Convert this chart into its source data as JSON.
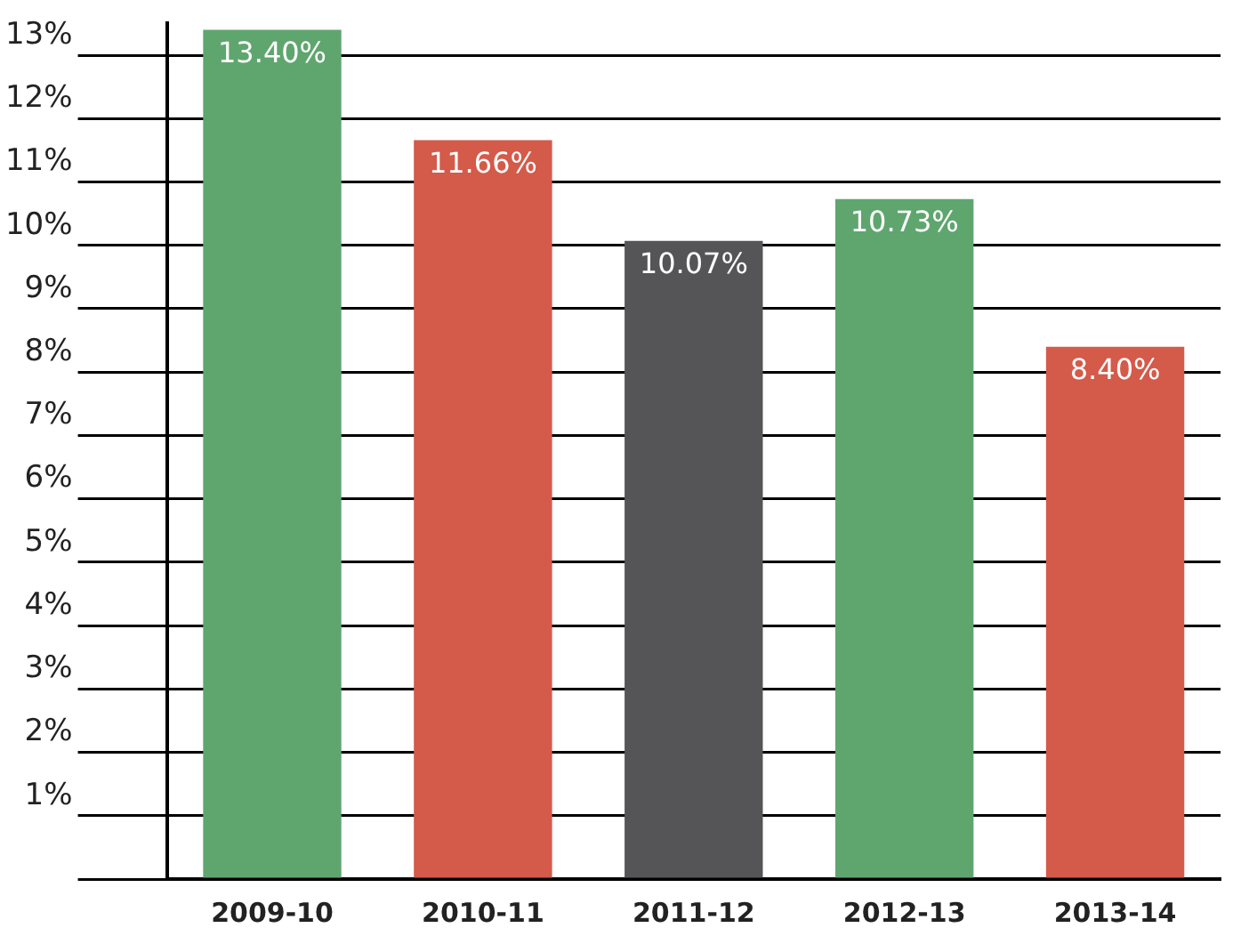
{
  "chart_data": {
    "type": "bar",
    "categories": [
      "2009-10",
      "2010-11",
      "2011-12",
      "2012-13",
      "2013-14"
    ],
    "values": [
      13.4,
      11.66,
      10.07,
      10.73,
      8.4
    ],
    "colors": [
      "#5fa66e",
      "#d45a4a",
      "#555557",
      "#5fa66e",
      "#d45a4a"
    ],
    "value_labels": [
      "13.40%",
      "11.66%",
      "10.07%",
      "10.73%",
      "8.40%"
    ],
    "ylim": [
      0,
      13.5
    ],
    "yticks": [
      {
        "value": 0,
        "label": null
      },
      {
        "value": 1,
        "label": "1%"
      },
      {
        "value": 2,
        "label": "2%"
      },
      {
        "value": 3,
        "label": "3%"
      },
      {
        "value": 4,
        "label": "4%"
      },
      {
        "value": 5,
        "label": "5%"
      },
      {
        "value": 6,
        "label": "6%"
      },
      {
        "value": 7,
        "label": "7%"
      },
      {
        "value": 8,
        "label": "8%"
      },
      {
        "value": 9,
        "label": "9%"
      },
      {
        "value": 10,
        "label": "10%"
      },
      {
        "value": 11,
        "label": "11%"
      },
      {
        "value": 12,
        "label": "12%"
      },
      {
        "value": 13,
        "label": "13%"
      }
    ],
    "grid": "y"
  }
}
